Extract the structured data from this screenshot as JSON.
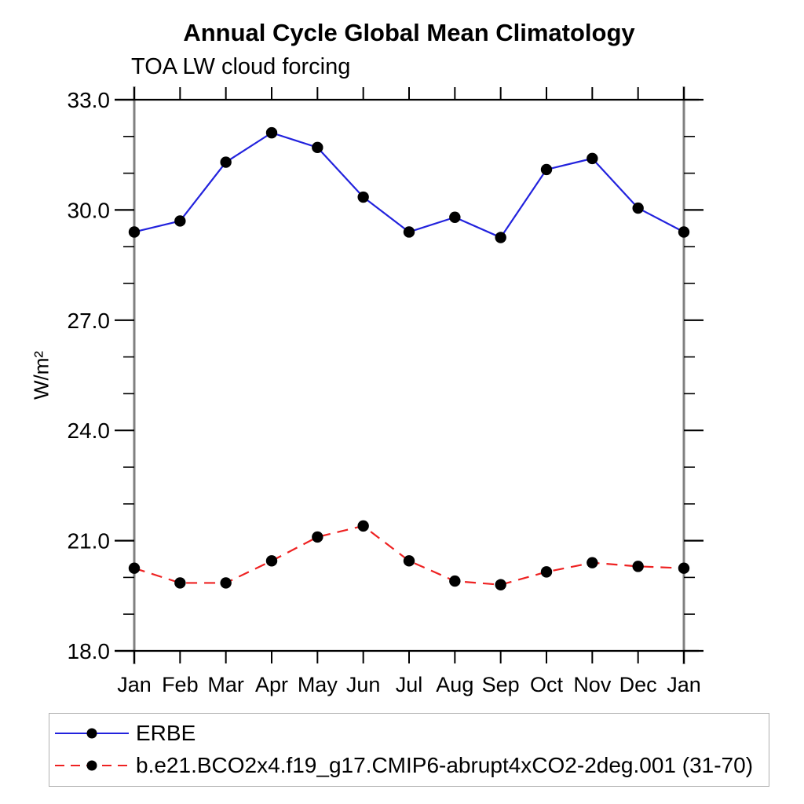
{
  "chart_data": {
    "type": "line",
    "title": "Annual Cycle Global Mean Climatology",
    "subtitle": "TOA LW cloud forcing",
    "ylabel": "W/m²",
    "categories": [
      "Jan",
      "Feb",
      "Mar",
      "Apr",
      "May",
      "Jun",
      "Jul",
      "Aug",
      "Sep",
      "Oct",
      "Nov",
      "Dec",
      "Jan"
    ],
    "series": [
      {
        "name": "ERBE",
        "color": "#2222dd",
        "line_style": "solid",
        "marker": "filled-circle",
        "marker_color": "#000000",
        "values": [
          29.4,
          29.7,
          31.3,
          32.1,
          31.7,
          30.35,
          29.4,
          29.8,
          29.25,
          31.1,
          31.4,
          30.05,
          29.4
        ]
      },
      {
        "name": "b.e21.BCO2x4.f19_g17.CMIP6-abrupt4xCO2-2deg.001 (31-70)",
        "color": "#ee2222",
        "line_style": "dashed",
        "marker": "filled-circle",
        "marker_color": "#000000",
        "values": [
          20.25,
          19.85,
          19.85,
          20.45,
          21.1,
          21.4,
          20.45,
          19.9,
          19.8,
          20.15,
          20.4,
          20.3,
          20.25
        ]
      }
    ],
    "ylim": [
      18,
      33
    ],
    "ytick_values": [
      18,
      21,
      24,
      27,
      30,
      33
    ],
    "ytick_labels": [
      "18.0",
      "21.0",
      "24.0",
      "27.0",
      "30.0",
      "33.0"
    ],
    "minor_tick_step": 1,
    "grid": false,
    "legend_position": "bottom-left",
    "colors": {
      "frame": "#000000",
      "vertical_axis": "#808080",
      "tick": "#000000",
      "text": "#000000",
      "legend_border": "#b0b0b0"
    }
  }
}
